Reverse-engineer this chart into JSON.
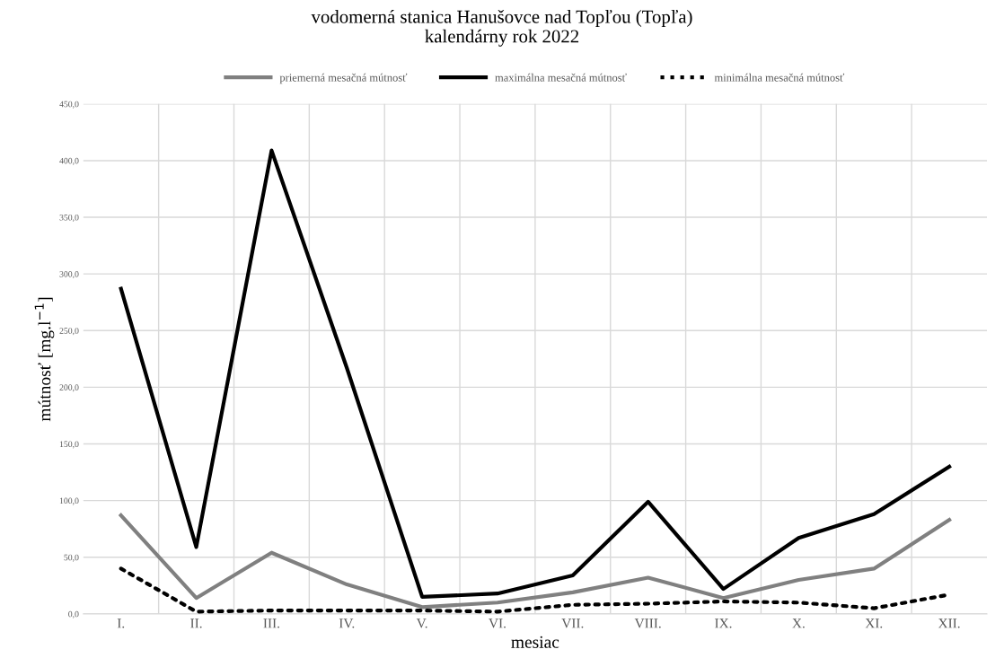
{
  "chart_data": {
    "type": "line",
    "title": "vodomerná stanica Hanušovce nad Topľou (Topľa)\nkalendárny rok 2022",
    "xlabel": "mesiac",
    "ylabel": "mútnosť [mg.l$^{−1}$]",
    "categories": [
      "I.",
      "II.",
      "III.",
      "IV.",
      "V.",
      "VI.",
      "VII.",
      "VIII.",
      "IX.",
      "X.",
      "XI.",
      "XII."
    ],
    "series": [
      {
        "name": "priemerná mesačná mútnosť",
        "color": "#808080",
        "line_style": "solid",
        "values": [
          87,
          14,
          54,
          26,
          6,
          10,
          19,
          32,
          14,
          30,
          40,
          83
        ]
      },
      {
        "name": "maximálna mesačná mútnosť",
        "color": "#000000",
        "line_style": "solid",
        "values": [
          287,
          59,
          409,
          217,
          15,
          18,
          34,
          99,
          22,
          67,
          88,
          130
        ]
      },
      {
        "name": "minimálna mesačná mútnosť",
        "color": "#000000",
        "line_style": "dotted",
        "values": [
          40,
          2,
          3,
          3,
          3,
          2,
          8,
          9,
          11,
          10,
          5,
          17
        ]
      }
    ],
    "ylim": [
      0,
      450
    ],
    "yticks": [
      {
        "value": 0,
        "label": "0,0"
      },
      {
        "value": 50,
        "label": "50,0"
      },
      {
        "value": 100,
        "label": "100,0"
      },
      {
        "value": 150,
        "label": "150,0"
      },
      {
        "value": 200,
        "label": "200,0"
      },
      {
        "value": 250,
        "label": "250,0"
      },
      {
        "value": 300,
        "label": "300,0"
      },
      {
        "value": 350,
        "label": "350,0"
      },
      {
        "value": 400,
        "label": "400,0"
      },
      {
        "value": 450,
        "label": "450,0"
      }
    ],
    "grid": true,
    "legend": "top"
  }
}
